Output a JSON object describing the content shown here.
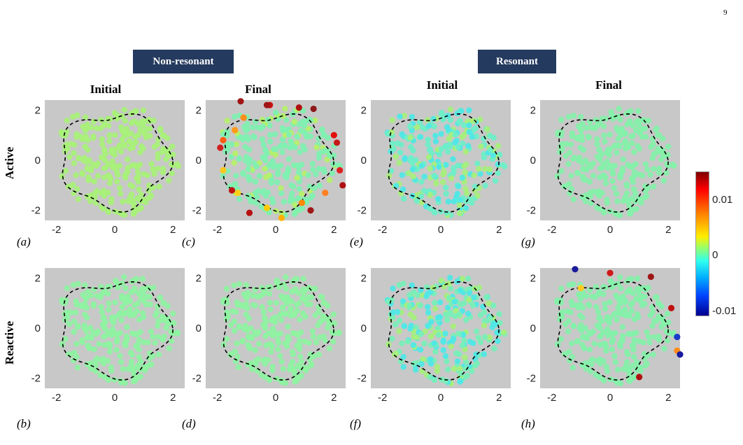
{
  "page_number": "9",
  "groups": [
    {
      "label": "Non-resonant"
    },
    {
      "label": "Resonant"
    }
  ],
  "column_titles": [
    "Initial",
    "Final",
    "Initial",
    "Final"
  ],
  "row_labels": [
    "Active",
    "Reactive"
  ],
  "panel_labels": [
    "(a)",
    "(b)",
    "(c)",
    "(d)",
    "(e)",
    "(f)",
    "(g)",
    "(h)"
  ],
  "axis": {
    "x_ticks": [
      "-2",
      "0",
      "2"
    ],
    "y_ticks": [
      "2",
      "0",
      "-2"
    ],
    "xlim": [
      -2.4,
      2.4
    ],
    "ylim": [
      -2.4,
      2.4
    ]
  },
  "colorbar": {
    "ticks": [
      "0.01",
      "0",
      "-0.01"
    ],
    "colormap": "jet",
    "range": [
      -0.014,
      0.014
    ]
  },
  "colors": {
    "panel_background": "#c8c8c8",
    "badge_background": "#243a5e",
    "boundary": "#000000"
  }
}
